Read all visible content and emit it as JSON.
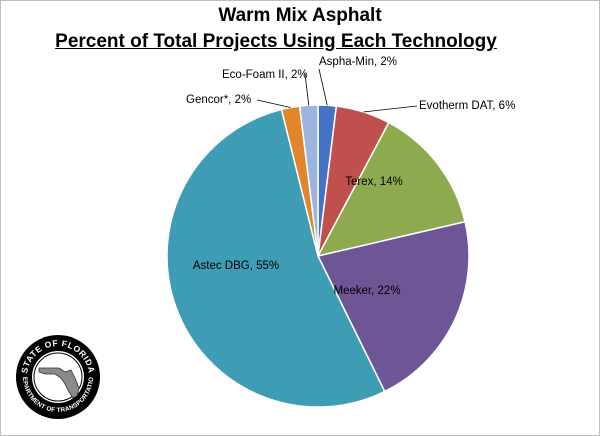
{
  "chart_data": {
    "type": "pie",
    "title": "Warm Mix Asphalt",
    "subtitle": "Percent of Total Projects Using Each Technology",
    "slices": [
      {
        "name": "Aspha-Min",
        "value": 2,
        "label": "Aspha-Min, 2%",
        "color": "#4472c4"
      },
      {
        "name": "Evotherm DAT",
        "value": 6,
        "label": "Evotherm DAT, 6%",
        "color": "#c0504d"
      },
      {
        "name": "Terex",
        "value": 14,
        "label": "Terex, 14%",
        "color": "#8eaa4f"
      },
      {
        "name": "Meeker",
        "value": 22,
        "label": "Meeker, 22%",
        "color": "#6e5696"
      },
      {
        "name": "Astec DBG",
        "value": 55,
        "label": "Astec DBG, 55%",
        "color": "#3e9db5"
      },
      {
        "name": "Gencor*",
        "value": 2,
        "label": "Gencor*, 2%",
        "color": "#e1862b"
      },
      {
        "name": "Eco-Foam II",
        "value": 2,
        "label": "Eco-Foam II, 2%",
        "color": "#9bb5e0"
      }
    ]
  },
  "seal": {
    "text_top": "STATE OF FLORIDA",
    "text_bottom": "DEPARTMENT OF TRANSPORTATION"
  }
}
